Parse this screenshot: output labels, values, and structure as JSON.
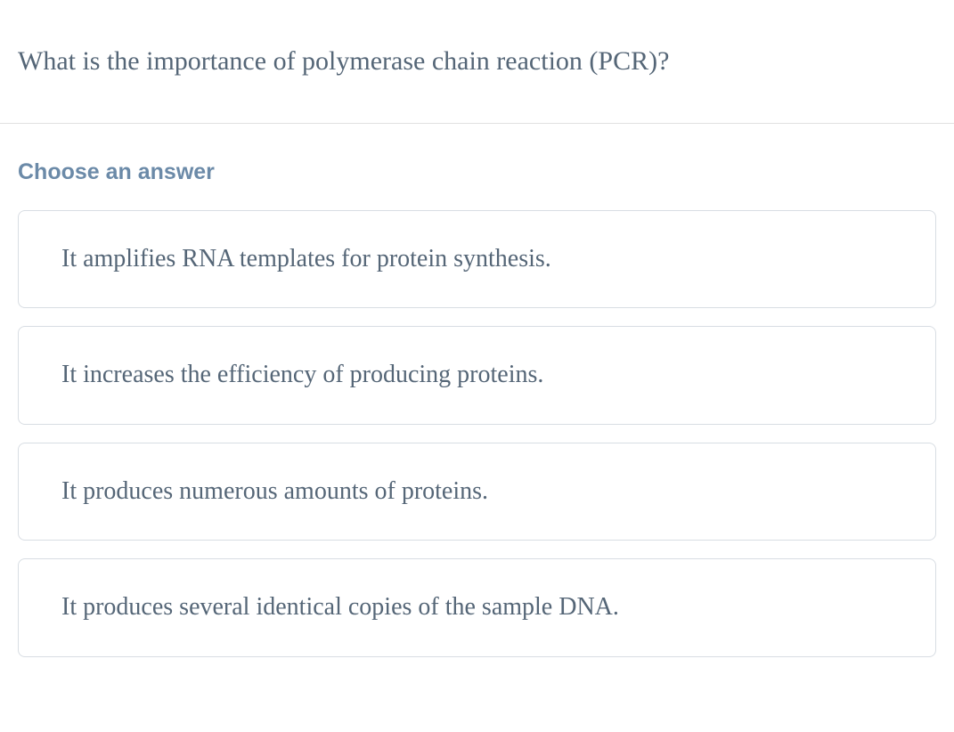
{
  "question": {
    "text": "What is the importance of polymerase chain reaction (PCR)?",
    "text_color": "#556677",
    "font_size": 30
  },
  "choose_label": {
    "text": "Choose an answer",
    "color": "#6b8aa8",
    "font_size": 25,
    "font_weight": 700
  },
  "answers": [
    {
      "text": "It amplifies RNA templates for protein synthesis."
    },
    {
      "text": "It increases the efficiency of producing proteins."
    },
    {
      "text": "It produces numerous amounts of proteins."
    },
    {
      "text": "It produces several identical copies of the sample DNA."
    }
  ],
  "styling": {
    "background_color": "#ffffff",
    "border_color": "#d8dde3",
    "divider_color": "#e0e0e0",
    "answer_text_color": "#556677",
    "answer_font_size": 28,
    "border_radius": 8
  }
}
